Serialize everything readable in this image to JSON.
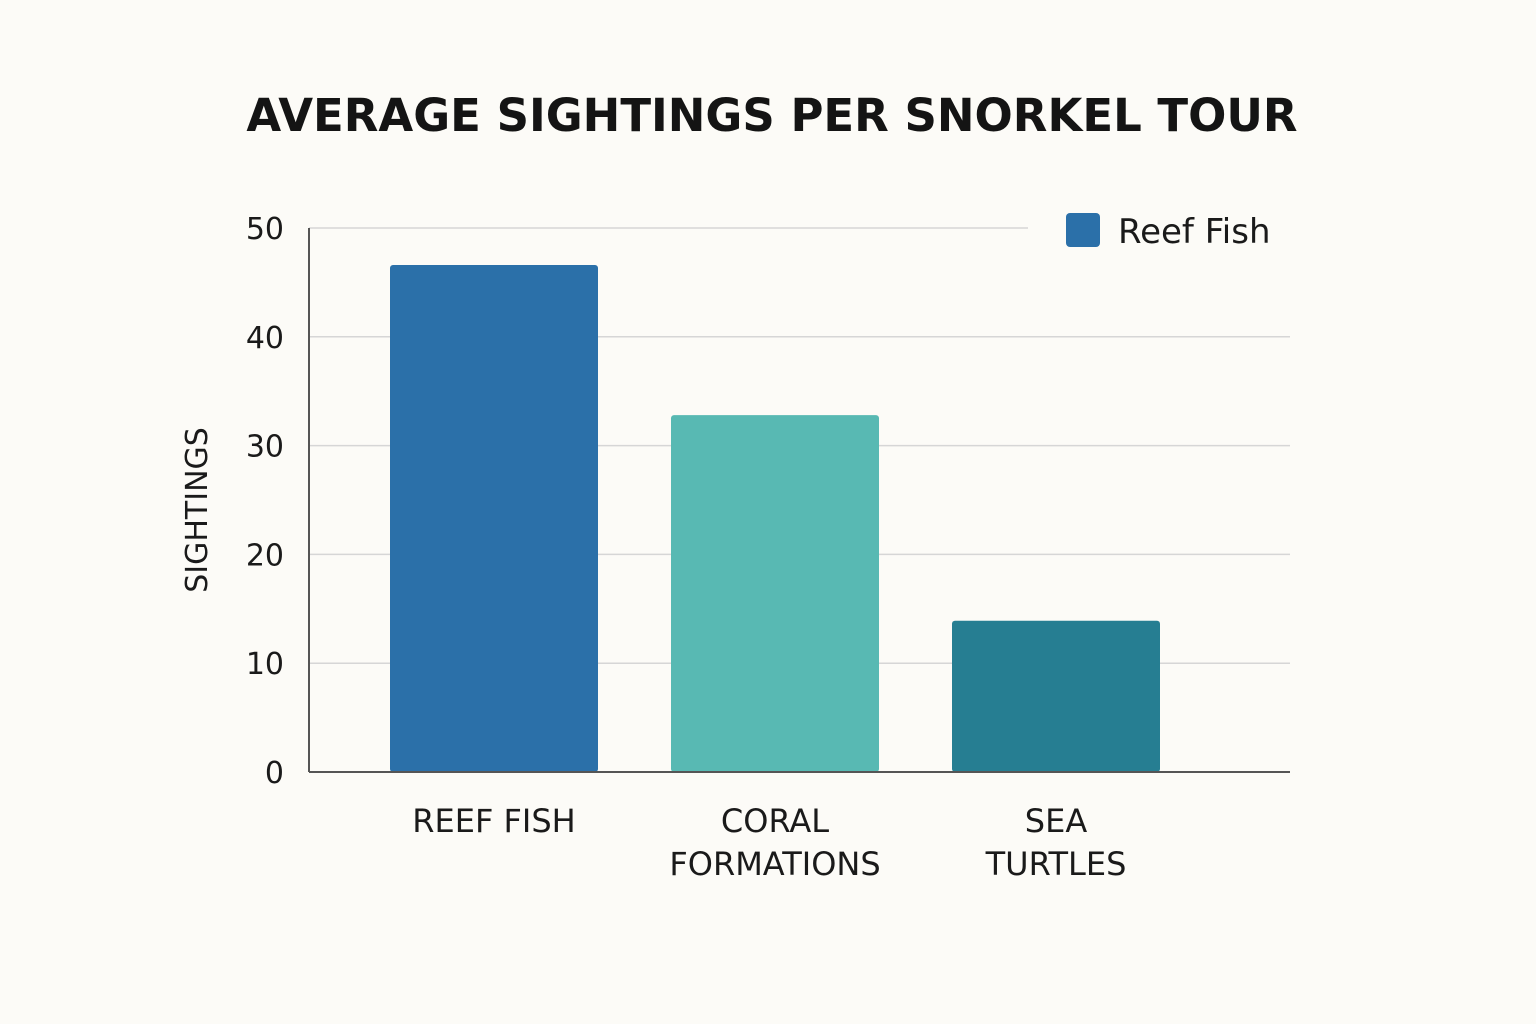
{
  "chart_data": {
    "type": "bar",
    "title": "AVERAGE SIGHTINGS PER SNORKEL TOUR",
    "xlabel": "",
    "ylabel": "SIGHTINGS",
    "ylim": [
      0,
      50
    ],
    "yticks": [
      0,
      10,
      20,
      30,
      40,
      50
    ],
    "grid": true,
    "categories": [
      [
        "REEF FISH"
      ],
      [
        "CORAL",
        "FORMATIONS"
      ],
      [
        "SEA",
        "TURTLES"
      ]
    ],
    "values": [
      46.6,
      32.8,
      13.9
    ],
    "bar_colors": [
      "#2b70a9",
      "#58b9b3",
      "#267e92"
    ],
    "legend": {
      "placement": "top-right",
      "entries": [
        {
          "label": "Reef Fish",
          "color": "#2b70a9"
        }
      ]
    }
  }
}
